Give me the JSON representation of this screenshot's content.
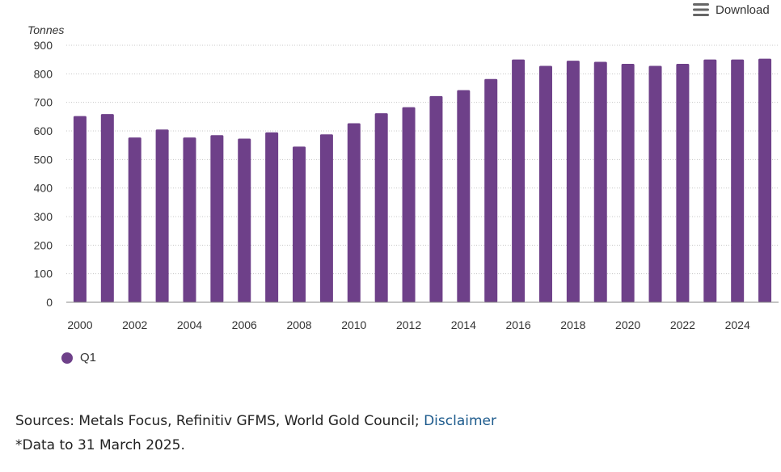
{
  "toolbar": {
    "download_label": "Download"
  },
  "chart_data": {
    "type": "bar",
    "ylabel": "Tonnes",
    "xlabel": "",
    "ylim": [
      0,
      900
    ],
    "yticks": [
      0,
      100,
      200,
      300,
      400,
      500,
      600,
      700,
      800,
      900
    ],
    "categories": [
      "2000",
      "2001",
      "2002",
      "2003",
      "2004",
      "2005",
      "2006",
      "2007",
      "2008",
      "2009",
      "2010",
      "2011",
      "2012",
      "2013",
      "2014",
      "2015",
      "2016",
      "2017",
      "2018",
      "2019",
      "2020",
      "2021",
      "2022",
      "2023",
      "2024",
      "2025"
    ],
    "xtick_labels": [
      "2000",
      "2002",
      "2004",
      "2006",
      "2008",
      "2010",
      "2012",
      "2014",
      "2016",
      "2018",
      "2020",
      "2022",
      "2024"
    ],
    "series": [
      {
        "name": "Q1",
        "color": "#6e4089",
        "values": [
          652,
          659,
          577,
          605,
          577,
          585,
          573,
          595,
          545,
          588,
          627,
          662,
          683,
          722,
          743,
          782,
          850,
          828,
          846,
          842,
          835,
          828,
          835,
          850,
          850,
          853
        ]
      }
    ],
    "grid": true,
    "legend_position": "bottom-left"
  },
  "footer": {
    "sources_text": "Sources: Metals Focus, Refinitiv GFMS, World Gold Council; ",
    "disclaimer_link": "Disclaimer",
    "footnote": "*Data to 31 March 2025."
  }
}
